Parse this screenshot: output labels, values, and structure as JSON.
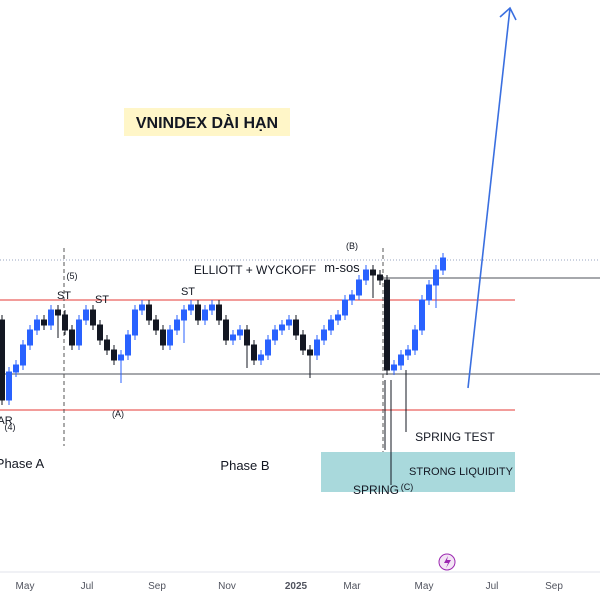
{
  "title": "VNINDEX DÀI HẠN",
  "annotations": [
    "ELLIOTT + WYCKOFF",
    "m-sos",
    "(B)",
    "(5)",
    "ST",
    "ST",
    "ST",
    "(A)",
    "AR",
    "(4)",
    "Phase A",
    "Phase B",
    "SPRING TEST",
    "STRONG LIQUIDITY",
    "SPRING",
    "(C)"
  ],
  "x_axis": {
    "labels": [
      "May",
      "Jul",
      "Sep",
      "Nov",
      "2025",
      "Mar",
      "May",
      "Jul",
      "Sep"
    ]
  }
}
